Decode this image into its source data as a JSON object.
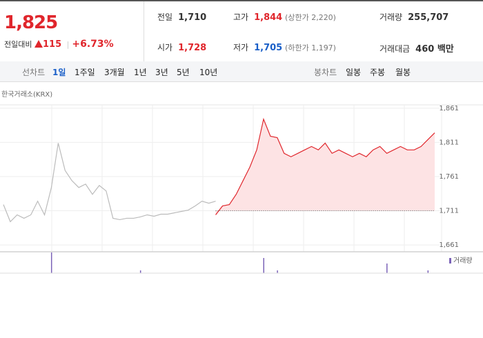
{
  "summary": {
    "price": "1,825",
    "change_label": "전일대비",
    "change": "115",
    "change_rate": "+6.73%"
  },
  "stats": [
    {
      "label": "전일",
      "value": "1,710"
    },
    {
      "label": "고가",
      "value": "1,844",
      "note": "(상한가 2,220)"
    },
    {
      "label": "거래량",
      "value": "255,707"
    },
    {
      "label": "시가",
      "value": "1,728"
    },
    {
      "label": "저가",
      "value": "1,705",
      "note": "(하한가 1,197)"
    },
    {
      "label": "거래대금",
      "value": "460 백만"
    }
  ],
  "tabs": {
    "line_label": "선차트",
    "line_items": [
      "1일",
      "1주일",
      "3개월",
      "1년",
      "3년",
      "5년",
      "10년"
    ],
    "candle_label": "봉차트",
    "candle_items": [
      "일봉",
      "주봉",
      "월봉"
    ]
  },
  "chart_data": {
    "type": "line",
    "source": "한국거래소(KRX)",
    "ylim": [
      1651,
      1876
    ],
    "yticks": [
      {
        "value": 1661,
        "label": "1,661"
      },
      {
        "value": 1711,
        "label": "1,711"
      },
      {
        "value": 1761,
        "label": "1,761"
      },
      {
        "value": 1811,
        "label": "1,811"
      },
      {
        "value": 1861,
        "label": "1,861"
      }
    ],
    "baseline": 1711,
    "series": [
      {
        "color": "#bbbbbb",
        "values": [
          1720,
          1695,
          1705,
          1700,
          1705,
          1725,
          1705,
          1745,
          1810,
          1770,
          1755,
          1745,
          1750,
          1735,
          1748,
          1740,
          1700,
          1698,
          1700,
          1700,
          1702,
          1705,
          1703,
          1706,
          1706,
          1708,
          1710,
          1712,
          1718,
          1725,
          1722,
          1725,
          null,
          null,
          null,
          null,
          null,
          null,
          null,
          null,
          null,
          null,
          null,
          null,
          null,
          null,
          null,
          null,
          null,
          null,
          null,
          null,
          null,
          null,
          null,
          null,
          null,
          null,
          null,
          null,
          null,
          null,
          null,
          null
        ]
      },
      {
        "color": "#e0262c",
        "values": [
          null,
          null,
          null,
          null,
          null,
          null,
          null,
          null,
          null,
          null,
          null,
          null,
          null,
          null,
          null,
          null,
          null,
          null,
          null,
          null,
          null,
          null,
          null,
          null,
          null,
          null,
          null,
          null,
          null,
          null,
          null,
          1705,
          1718,
          1720,
          1735,
          1755,
          1775,
          1800,
          1845,
          1820,
          1818,
          1795,
          1790,
          1795,
          1800,
          1805,
          1800,
          1810,
          1795,
          1800,
          1795,
          1790,
          1795,
          1790,
          1800,
          1805,
          1795,
          1800,
          1805,
          1800,
          1800,
          1805,
          1815,
          1825
        ]
      }
    ],
    "volume": {
      "name": "거래량",
      "color": "#7b63b8",
      "values": [
        0,
        0,
        0,
        0,
        0,
        0,
        0,
        30,
        0,
        0,
        0,
        0,
        0,
        0,
        0,
        0,
        0,
        0,
        0,
        0,
        4,
        0,
        0,
        0,
        0,
        0,
        0,
        0,
        0,
        0,
        0,
        0,
        0,
        0,
        0,
        0,
        0,
        0,
        22,
        0,
        4,
        0,
        0,
        0,
        0,
        0,
        0,
        0,
        0,
        0,
        0,
        0,
        0,
        0,
        0,
        0,
        14,
        0,
        0,
        0,
        0,
        0,
        4,
        0
      ]
    }
  }
}
